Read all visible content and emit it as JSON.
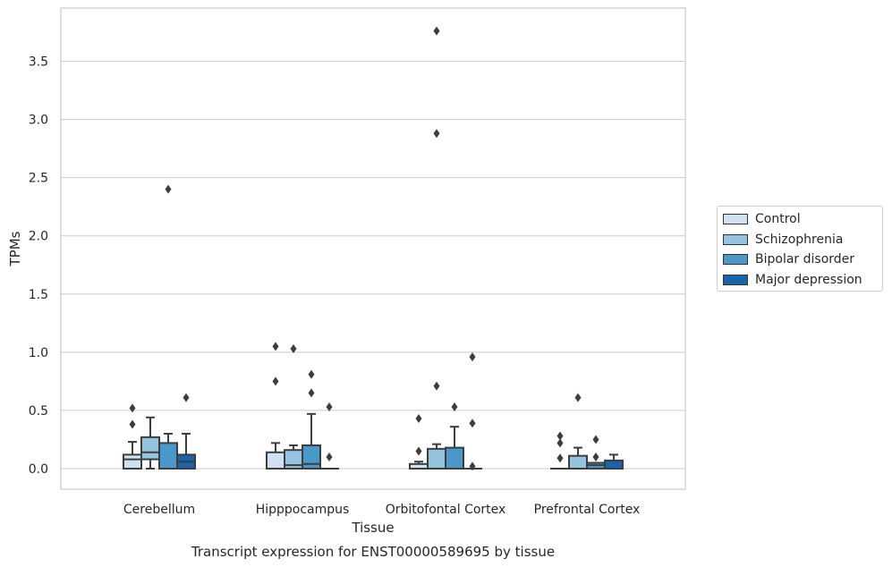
{
  "chart_data": {
    "type": "box",
    "title": "Transcript expression for ENST00000589695 by tissue",
    "xlabel": "Tissue",
    "ylabel": "TPMs",
    "ylim": [
      -0.18,
      3.95
    ],
    "yticks": [
      0.0,
      0.5,
      1.0,
      1.5,
      2.0,
      2.5,
      3.0,
      3.5
    ],
    "ytick_labels": [
      "0.0",
      "0.5",
      "1.0",
      "1.5",
      "2.0",
      "2.5",
      "3.0",
      "3.5"
    ],
    "grid": "horizontal",
    "legend_position": "right",
    "categories": [
      "Cerebellum",
      "Hipppocampus",
      "Orbitofontal Cortex",
      "Prefrontal Cortex"
    ],
    "series": [
      {
        "name": "Control",
        "color": "#d0e1f2",
        "boxes": [
          {
            "q1": 0.0,
            "median": 0.08,
            "q3": 0.12,
            "whislo": 0.0,
            "whishi": 0.23,
            "fliers": [
              0.38,
              0.52
            ]
          },
          {
            "q1": 0.0,
            "median": 0.0,
            "q3": 0.14,
            "whislo": 0.0,
            "whishi": 0.22,
            "fliers": [
              0.75,
              1.05
            ]
          },
          {
            "q1": 0.0,
            "median": 0.0,
            "q3": 0.04,
            "whislo": 0.0,
            "whishi": 0.06,
            "fliers": [
              0.15,
              0.43
            ]
          },
          {
            "q1": 0.0,
            "median": 0.0,
            "q3": 0.0,
            "whislo": 0.0,
            "whishi": 0.0,
            "fliers": [
              0.09,
              0.22,
              0.28
            ]
          }
        ]
      },
      {
        "name": "Schizophrenia",
        "color": "#94c4df",
        "boxes": [
          {
            "q1": 0.08,
            "median": 0.14,
            "q3": 0.27,
            "whislo": 0.0,
            "whishi": 0.44,
            "fliers": []
          },
          {
            "q1": 0.0,
            "median": 0.03,
            "q3": 0.16,
            "whislo": 0.0,
            "whishi": 0.2,
            "fliers": [
              1.03
            ]
          },
          {
            "q1": 0.0,
            "median": 0.0,
            "q3": 0.17,
            "whislo": 0.0,
            "whishi": 0.21,
            "fliers": [
              0.71,
              2.88,
              3.76
            ]
          },
          {
            "q1": 0.0,
            "median": 0.0,
            "q3": 0.11,
            "whislo": 0.0,
            "whishi": 0.18,
            "fliers": [
              0.61
            ]
          }
        ]
      },
      {
        "name": "Bipolar disorder",
        "color": "#4a98c9",
        "boxes": [
          {
            "q1": 0.0,
            "median": 0.0,
            "q3": 0.22,
            "whislo": 0.0,
            "whishi": 0.3,
            "fliers": [
              2.4
            ]
          },
          {
            "q1": 0.0,
            "median": 0.04,
            "q3": 0.2,
            "whislo": 0.0,
            "whishi": 0.47,
            "fliers": [
              0.65,
              0.81
            ]
          },
          {
            "q1": 0.0,
            "median": 0.0,
            "q3": 0.18,
            "whislo": 0.0,
            "whishi": 0.36,
            "fliers": [
              0.53
            ]
          },
          {
            "q1": 0.0,
            "median": 0.03,
            "q3": 0.05,
            "whislo": 0.0,
            "whishi": 0.05,
            "fliers": [
              0.1,
              0.25
            ]
          }
        ]
      },
      {
        "name": "Major depression",
        "color": "#1764ab",
        "boxes": [
          {
            "q1": 0.0,
            "median": 0.06,
            "q3": 0.12,
            "whislo": 0.0,
            "whishi": 0.3,
            "fliers": [
              0.61
            ]
          },
          {
            "q1": 0.0,
            "median": 0.0,
            "q3": 0.0,
            "whislo": 0.0,
            "whishi": 0.0,
            "fliers": [
              0.1,
              0.53
            ]
          },
          {
            "q1": 0.0,
            "median": 0.0,
            "q3": 0.0,
            "whislo": 0.0,
            "whishi": 0.0,
            "fliers": [
              0.02,
              0.39,
              0.96
            ]
          },
          {
            "q1": 0.0,
            "median": 0.0,
            "q3": 0.07,
            "whislo": 0.0,
            "whishi": 0.12,
            "fliers": []
          }
        ]
      }
    ]
  }
}
